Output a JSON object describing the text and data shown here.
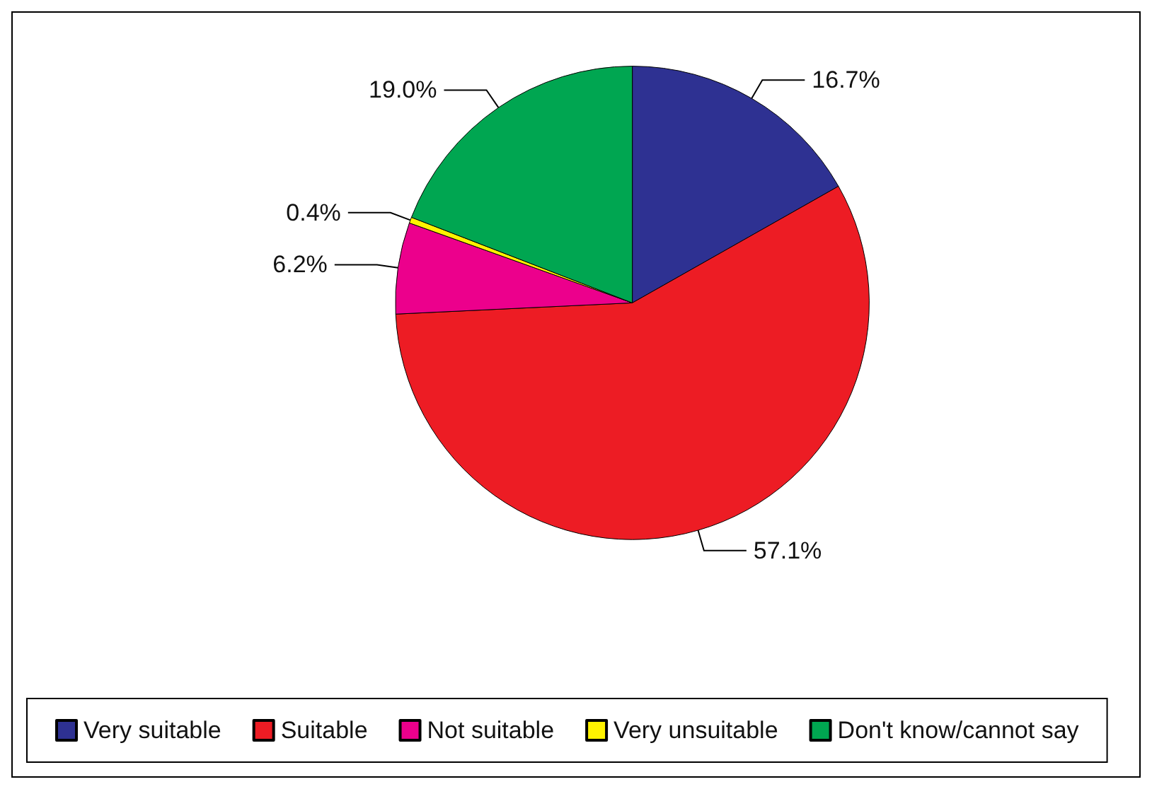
{
  "chart_data": {
    "type": "pie",
    "categories": [
      "Very suitable",
      "Suitable",
      "Not suitable",
      "Very unsuitable",
      "Don't know/cannot say"
    ],
    "values": [
      16.7,
      57.1,
      6.2,
      0.4,
      19.0
    ],
    "colors": [
      "#2e3192",
      "#ed1c24",
      "#ec008c",
      "#fff200",
      "#00a651"
    ],
    "value_labels": [
      "16.7%",
      "57.1%",
      "6.2%",
      "0.4%",
      "19.0%"
    ],
    "legend": "bottom"
  }
}
